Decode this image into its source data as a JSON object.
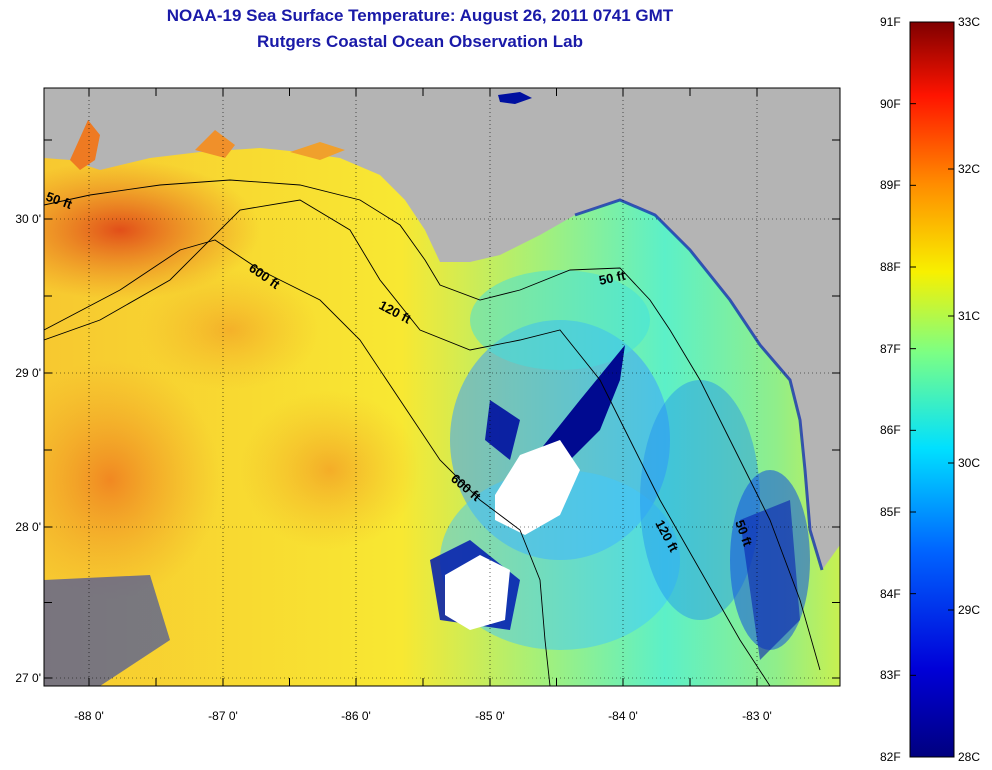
{
  "title": "NOAA-19 Sea Surface Temperature:  August 26, 2011 0741 GMT",
  "subtitle": "Rutgers Coastal Ocean Observation Lab",
  "map": {
    "lon_ticks": [
      "-88 0'",
      "-87 0'",
      "-86 0'",
      "-85 0'",
      "-84 0'",
      "-83 0'"
    ],
    "lat_ticks": [
      "30 0'",
      "29 0'",
      "28 0'",
      "27 0'"
    ],
    "contour_labels": [
      "50 ft",
      "600 ft",
      "120 ft",
      "50 ft",
      "600 ft",
      "120 ft",
      "50 ft"
    ],
    "land_color": "#b4b4b4",
    "cloud_color": "#ffffff"
  },
  "colorbar": {
    "fahrenheit": [
      "91F",
      "90F",
      "89F",
      "88F",
      "87F",
      "86F",
      "85F",
      "84F",
      "83F",
      "82F"
    ],
    "celsius": [
      "33C",
      "32C",
      "31C",
      "30C",
      "29C",
      "28C"
    ]
  }
}
